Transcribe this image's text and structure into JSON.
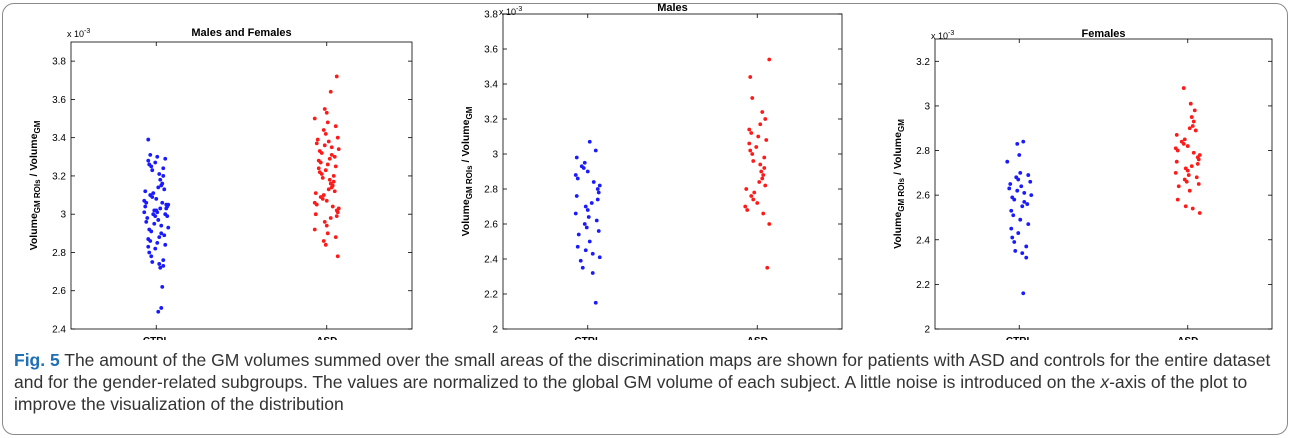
{
  "chart_data": [
    {
      "type": "scatter",
      "title": "Males and Females",
      "ylabel": "Volume GM ROIs / Volume GM",
      "ylabel_main": "Volume",
      "ylabel_sub": "GM ROIs",
      "ylabel_div": " / Volume",
      "ylabel_sub2": "GM",
      "exponent_base": "x 10",
      "exponent_power": "-3",
      "categories": [
        "CTRL",
        "ASD"
      ],
      "ylim": [
        2.4,
        3.9
      ],
      "yticks": [
        2.4,
        2.6,
        2.8,
        3.0,
        3.2,
        3.4,
        3.6,
        3.8
      ],
      "ytick_labels": [
        "2.4",
        "2.6",
        "2.8",
        "3",
        "3.2",
        "3.4",
        "3.6",
        "3.8"
      ],
      "series": [
        {
          "color": "#1a1aff",
          "x": 1,
          "values": [
            3.39,
            3.31,
            3.3,
            3.29,
            3.28,
            3.27,
            3.26,
            3.25,
            3.24,
            3.23,
            3.21,
            3.2,
            3.18,
            3.16,
            3.15,
            3.14,
            3.13,
            3.12,
            3.11,
            3.1,
            3.09,
            3.08,
            3.07,
            3.06,
            3.06,
            3.05,
            3.05,
            3.04,
            3.04,
            3.03,
            3.03,
            3.02,
            3.02,
            3.01,
            3.01,
            3.0,
            3.0,
            2.99,
            2.99,
            2.98,
            2.97,
            2.96,
            2.95,
            2.94,
            2.93,
            2.92,
            2.91,
            2.9,
            2.89,
            2.88,
            2.87,
            2.86,
            2.85,
            2.84,
            2.83,
            2.82,
            2.8,
            2.78,
            2.76,
            2.75,
            2.74,
            2.73,
            2.72,
            2.62,
            2.51,
            2.49
          ]
        },
        {
          "color": "#ff1a1a",
          "x": 2,
          "values": [
            3.72,
            3.64,
            3.55,
            3.53,
            3.5,
            3.48,
            3.46,
            3.44,
            3.42,
            3.4,
            3.39,
            3.38,
            3.37,
            3.36,
            3.35,
            3.34,
            3.33,
            3.32,
            3.31,
            3.3,
            3.29,
            3.28,
            3.27,
            3.26,
            3.25,
            3.24,
            3.23,
            3.22,
            3.21,
            3.2,
            3.19,
            3.18,
            3.17,
            3.16,
            3.15,
            3.14,
            3.13,
            3.12,
            3.11,
            3.1,
            3.09,
            3.08,
            3.07,
            3.06,
            3.05,
            3.04,
            3.03,
            3.02,
            3.01,
            3.0,
            2.99,
            2.98,
            2.96,
            2.94,
            2.92,
            2.9,
            2.88,
            2.86,
            2.84,
            2.78
          ]
        }
      ]
    },
    {
      "type": "scatter",
      "title": "Males",
      "ylabel": "Volume GM ROIs / Volume GM",
      "ylabel_main": "Volume",
      "ylabel_sub": "GM ROIs",
      "ylabel_div": " / Volume",
      "ylabel_sub2": "GM",
      "exponent_base": "x 10",
      "exponent_power": "-3",
      "categories": [
        "CTRL",
        "ASD"
      ],
      "ylim": [
        2.0,
        3.8
      ],
      "yticks": [
        2.0,
        2.2,
        2.4,
        2.6,
        2.8,
        3.0,
        3.2,
        3.4,
        3.6,
        3.8
      ],
      "ytick_labels": [
        "2",
        "2.2",
        "2.4",
        "2.6",
        "2.8",
        "3",
        "3.2",
        "3.4",
        "3.6",
        "3.8"
      ],
      "series": [
        {
          "color": "#1a1aff",
          "x": 1,
          "values": [
            3.07,
            3.02,
            2.98,
            2.95,
            2.93,
            2.92,
            2.9,
            2.88,
            2.86,
            2.84,
            2.82,
            2.8,
            2.78,
            2.76,
            2.74,
            2.72,
            2.7,
            2.68,
            2.66,
            2.64,
            2.62,
            2.6,
            2.58,
            2.56,
            2.54,
            2.5,
            2.47,
            2.45,
            2.43,
            2.41,
            2.39,
            2.35,
            2.32,
            2.15
          ]
        },
        {
          "color": "#ff1a1a",
          "x": 2,
          "values": [
            3.54,
            3.44,
            3.32,
            3.24,
            3.2,
            3.17,
            3.14,
            3.12,
            3.1,
            3.08,
            3.06,
            3.04,
            3.02,
            3.0,
            2.98,
            2.96,
            2.94,
            2.92,
            2.9,
            2.88,
            2.86,
            2.84,
            2.82,
            2.8,
            2.78,
            2.76,
            2.74,
            2.72,
            2.7,
            2.68,
            2.66,
            2.6,
            2.35
          ]
        }
      ]
    },
    {
      "type": "scatter",
      "title": "Females",
      "ylabel": "Volume GM ROIs / Volume GM",
      "ylabel_main": "Volume",
      "ylabel_sub": "GM ROIs",
      "ylabel_div": " / Volume",
      "ylabel_sub2": "GM",
      "exponent_base": "x 10",
      "exponent_power": "-3",
      "categories": [
        "CTRL",
        "ASD"
      ],
      "ylim": [
        2.0,
        3.3
      ],
      "yticks": [
        2.0,
        2.2,
        2.4,
        2.6,
        2.8,
        3.0,
        3.2
      ],
      "ytick_labels": [
        "2",
        "2.2",
        "2.4",
        "2.6",
        "2.8",
        "3",
        "3.2"
      ],
      "series": [
        {
          "color": "#1a1aff",
          "x": 1,
          "values": [
            2.84,
            2.83,
            2.78,
            2.75,
            2.7,
            2.69,
            2.68,
            2.67,
            2.66,
            2.65,
            2.64,
            2.63,
            2.62,
            2.61,
            2.6,
            2.59,
            2.58,
            2.57,
            2.56,
            2.55,
            2.53,
            2.51,
            2.49,
            2.47,
            2.45,
            2.43,
            2.41,
            2.39,
            2.37,
            2.35,
            2.34,
            2.32,
            2.16
          ]
        },
        {
          "color": "#ff1a1a",
          "x": 2,
          "values": [
            3.08,
            3.01,
            2.98,
            2.95,
            2.93,
            2.91,
            2.9,
            2.89,
            2.87,
            2.85,
            2.84,
            2.83,
            2.82,
            2.81,
            2.8,
            2.79,
            2.78,
            2.77,
            2.76,
            2.75,
            2.74,
            2.73,
            2.72,
            2.71,
            2.7,
            2.69,
            2.68,
            2.67,
            2.66,
            2.65,
            2.64,
            2.62,
            2.58,
            2.55,
            2.54,
            2.52
          ]
        }
      ]
    }
  ],
  "caption": {
    "label": "Fig. 5",
    "text_before_italic": " The amount of the GM volumes summed over the small areas of the discrimination maps are shown for patients with ASD and controls for the entire dataset and for the gender-related subgroups. The values are normalized to the global GM volume of each subject. A little noise is introduced on the ",
    "italic": "x",
    "text_after_italic": "-axis of the plot to improve the visualization of the distribution"
  }
}
